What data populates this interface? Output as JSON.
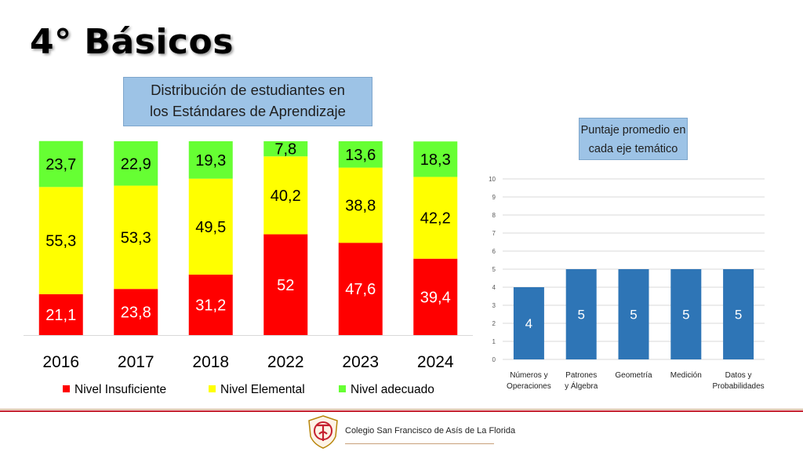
{
  "page_title": "4° Básicos",
  "footer": {
    "school_name": "Colegio San Francisco de Asís de La Florida"
  },
  "chart_data": [
    {
      "type": "bar",
      "stacked": true,
      "title": "Distribución de estudiantes en los Estándares de Aprendizaje",
      "title_lines": [
        "Distribución de estudiantes en",
        "los Estándares de Aprendizaje"
      ],
      "categories": [
        "2016",
        "2017",
        "2018",
        "2022",
        "2023",
        "2024"
      ],
      "series": [
        {
          "name": "Nivel Insuficiente",
          "color": "#ff0000",
          "values": [
            21.1,
            23.8,
            31.2,
            52,
            47.6,
            39.4
          ],
          "labels": [
            "21,1",
            "23,8",
            "31,2",
            "52",
            "47,6",
            "39,4"
          ]
        },
        {
          "name": "Nivel Elemental",
          "color": "#ffff00",
          "values": [
            55.3,
            53.3,
            49.5,
            40.2,
            38.8,
            42.2
          ],
          "labels": [
            "55,3",
            "53,3",
            "49,5",
            "40,2",
            "38,8",
            "42,2"
          ]
        },
        {
          "name": "Nivel adecuado",
          "color": "#66ff33",
          "values": [
            23.7,
            22.9,
            19.3,
            7.8,
            13.6,
            18.3
          ],
          "labels": [
            "23,7",
            "22,9",
            "19,3",
            "7,8",
            "13,6",
            "18,3"
          ]
        }
      ],
      "ylim": [
        0,
        100
      ],
      "legend": "bottom",
      "grid": false
    },
    {
      "type": "bar",
      "title": "Puntaje promedio en cada eje temático",
      "title_lines": [
        "Puntaje promedio en",
        "cada eje temático"
      ],
      "categories": [
        [
          "Números y",
          "Operaciones"
        ],
        [
          "Patrones",
          "y Álgebra"
        ],
        [
          "Geometría"
        ],
        [
          "Medición"
        ],
        [
          "Datos y",
          "Probabilidades"
        ]
      ],
      "values": [
        4,
        5,
        5,
        5,
        5
      ],
      "color": "#2e75b6",
      "ylim": [
        0,
        10
      ],
      "yticks": [
        0,
        1,
        2,
        3,
        4,
        5,
        6,
        7,
        8,
        9,
        10
      ],
      "grid": true
    }
  ]
}
